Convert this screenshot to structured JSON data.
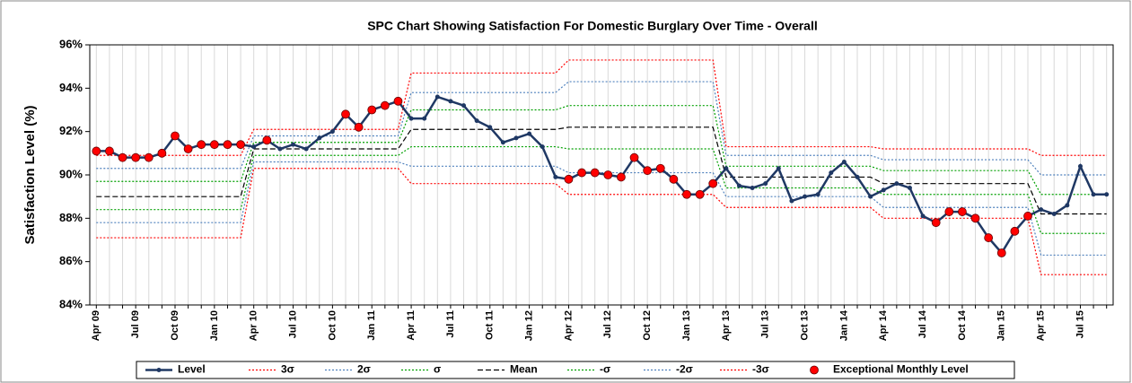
{
  "chart_data": {
    "type": "line",
    "title": "SPC Chart Showing Satisfaction For Domestic Burglary Over Time - Overall",
    "ylabel": "Satisfaction  Level  (%)",
    "categories": [
      "Apr 09",
      null,
      null,
      "Jul 09",
      null,
      null,
      "Oct 09",
      null,
      null,
      "Jan 10",
      null,
      null,
      "Apr 10",
      null,
      null,
      "Jul 10",
      null,
      null,
      "Oct 10",
      null,
      null,
      "Jan 11",
      null,
      null,
      "Apr 11",
      null,
      null,
      "Jul 11",
      null,
      null,
      "Oct 11",
      null,
      null,
      "Jan 12",
      null,
      null,
      "Apr 12",
      null,
      null,
      "Jul 12",
      null,
      null,
      "Oct 12",
      null,
      null,
      "Jan 13",
      null,
      null,
      "Apr 13",
      null,
      null,
      "Jul 13",
      null,
      null,
      "Oct 13",
      null,
      null,
      "Jan 14",
      null,
      null,
      "Apr 14",
      null,
      null,
      "Jul 14",
      null,
      null,
      "Oct 14",
      null,
      null,
      "Jan 15",
      null,
      null,
      "Apr 15",
      null,
      null,
      "Jul 15",
      null,
      null
    ],
    "ylim": [
      84,
      96
    ],
    "yticks": [
      {
        "value": 84,
        "label": "84%"
      },
      {
        "value": 86,
        "label": "86%"
      },
      {
        "value": 88,
        "label": "88%"
      },
      {
        "value": 90,
        "label": "90%"
      },
      {
        "value": 92,
        "label": "92%"
      },
      {
        "value": 94,
        "label": "94%"
      },
      {
        "value": 96,
        "label": "96%"
      }
    ],
    "grid": true,
    "legend": "bottom",
    "series": [
      {
        "name": "Level",
        "color": "#1f3864",
        "dash": "solid",
        "marker": "dot",
        "values": [
          91.1,
          91.1,
          90.8,
          90.8,
          90.8,
          91.0,
          91.8,
          91.2,
          91.4,
          91.4,
          91.4,
          91.4,
          91.3,
          91.6,
          91.2,
          91.4,
          91.2,
          91.7,
          92.0,
          92.8,
          92.2,
          93.0,
          93.2,
          93.4,
          92.6,
          92.6,
          93.6,
          93.4,
          93.2,
          92.5,
          92.2,
          91.5,
          91.7,
          91.9,
          91.3,
          89.9,
          89.8,
          90.1,
          90.1,
          90.0,
          89.9,
          90.8,
          90.2,
          90.3,
          89.8,
          89.1,
          89.1,
          89.6,
          90.3,
          89.5,
          89.4,
          89.6,
          90.3,
          88.8,
          89.0,
          89.1,
          90.1,
          90.6,
          89.9,
          89.0,
          89.3,
          89.6,
          89.4,
          88.1,
          87.8,
          88.3,
          88.3,
          88.0,
          87.1,
          86.4,
          87.4,
          88.1,
          88.4,
          88.2,
          88.6,
          90.4,
          89.1,
          89.1
        ]
      },
      {
        "name": "3σ",
        "color": "#ff0000",
        "dash": "dotted",
        "values": [
          90.9,
          90.9,
          90.9,
          90.9,
          90.9,
          90.9,
          90.9,
          90.9,
          90.9,
          90.9,
          90.9,
          90.9,
          92.1,
          92.1,
          92.1,
          92.1,
          92.1,
          92.1,
          92.1,
          92.1,
          92.1,
          92.1,
          92.1,
          92.1,
          94.7,
          94.7,
          94.7,
          94.7,
          94.7,
          94.7,
          94.7,
          94.7,
          94.7,
          94.7,
          94.7,
          94.7,
          95.3,
          95.3,
          95.3,
          95.3,
          95.3,
          95.3,
          95.3,
          95.3,
          95.3,
          95.3,
          95.3,
          95.3,
          91.3,
          91.3,
          91.3,
          91.3,
          91.3,
          91.3,
          91.3,
          91.3,
          91.3,
          91.3,
          91.3,
          91.3,
          91.2,
          91.2,
          91.2,
          91.2,
          91.2,
          91.2,
          91.2,
          91.2,
          91.2,
          91.2,
          91.2,
          91.2,
          90.9,
          90.9,
          90.9,
          90.9,
          90.9,
          90.9
        ]
      },
      {
        "name": "2σ",
        "color": "#4f81bd",
        "dash": "dotted",
        "values": [
          90.3,
          90.3,
          90.3,
          90.3,
          90.3,
          90.3,
          90.3,
          90.3,
          90.3,
          90.3,
          90.3,
          90.3,
          91.8,
          91.8,
          91.8,
          91.8,
          91.8,
          91.8,
          91.8,
          91.8,
          91.8,
          91.8,
          91.8,
          91.8,
          93.8,
          93.8,
          93.8,
          93.8,
          93.8,
          93.8,
          93.8,
          93.8,
          93.8,
          93.8,
          93.8,
          93.8,
          94.3,
          94.3,
          94.3,
          94.3,
          94.3,
          94.3,
          94.3,
          94.3,
          94.3,
          94.3,
          94.3,
          94.3,
          90.9,
          90.9,
          90.9,
          90.9,
          90.9,
          90.9,
          90.9,
          90.9,
          90.9,
          90.9,
          90.9,
          90.9,
          90.7,
          90.7,
          90.7,
          90.7,
          90.7,
          90.7,
          90.7,
          90.7,
          90.7,
          90.7,
          90.7,
          90.7,
          90.0,
          90.0,
          90.0,
          90.0,
          90.0,
          90.0
        ]
      },
      {
        "name": "σ",
        "color": "#00a000",
        "dash": "dotted",
        "values": [
          89.7,
          89.7,
          89.7,
          89.7,
          89.7,
          89.7,
          89.7,
          89.7,
          89.7,
          89.7,
          89.7,
          89.7,
          91.5,
          91.5,
          91.5,
          91.5,
          91.5,
          91.5,
          91.5,
          91.5,
          91.5,
          91.5,
          91.5,
          91.5,
          93.0,
          93.0,
          93.0,
          93.0,
          93.0,
          93.0,
          93.0,
          93.0,
          93.0,
          93.0,
          93.0,
          93.0,
          93.2,
          93.2,
          93.2,
          93.2,
          93.2,
          93.2,
          93.2,
          93.2,
          93.2,
          93.2,
          93.2,
          93.2,
          90.4,
          90.4,
          90.4,
          90.4,
          90.4,
          90.4,
          90.4,
          90.4,
          90.4,
          90.4,
          90.4,
          90.4,
          90.2,
          90.2,
          90.2,
          90.2,
          90.2,
          90.2,
          90.2,
          90.2,
          90.2,
          90.2,
          90.2,
          90.2,
          89.1,
          89.1,
          89.1,
          89.1,
          89.1,
          89.1
        ]
      },
      {
        "name": "Mean",
        "color": "#000000",
        "dash": "dashed",
        "values": [
          89.0,
          89.0,
          89.0,
          89.0,
          89.0,
          89.0,
          89.0,
          89.0,
          89.0,
          89.0,
          89.0,
          89.0,
          91.2,
          91.2,
          91.2,
          91.2,
          91.2,
          91.2,
          91.2,
          91.2,
          91.2,
          91.2,
          91.2,
          91.2,
          92.1,
          92.1,
          92.1,
          92.1,
          92.1,
          92.1,
          92.1,
          92.1,
          92.1,
          92.1,
          92.1,
          92.1,
          92.2,
          92.2,
          92.2,
          92.2,
          92.2,
          92.2,
          92.2,
          92.2,
          92.2,
          92.2,
          92.2,
          92.2,
          89.9,
          89.9,
          89.9,
          89.9,
          89.9,
          89.9,
          89.9,
          89.9,
          89.9,
          89.9,
          89.9,
          89.9,
          89.6,
          89.6,
          89.6,
          89.6,
          89.6,
          89.6,
          89.6,
          89.6,
          89.6,
          89.6,
          89.6,
          89.6,
          88.2,
          88.2,
          88.2,
          88.2,
          88.2,
          88.2
        ]
      },
      {
        "name": "-σ",
        "color": "#00a000",
        "dash": "dotted",
        "values": [
          88.4,
          88.4,
          88.4,
          88.4,
          88.4,
          88.4,
          88.4,
          88.4,
          88.4,
          88.4,
          88.4,
          88.4,
          90.9,
          90.9,
          90.9,
          90.9,
          90.9,
          90.9,
          90.9,
          90.9,
          90.9,
          90.9,
          90.9,
          90.9,
          91.3,
          91.3,
          91.3,
          91.3,
          91.3,
          91.3,
          91.3,
          91.3,
          91.3,
          91.3,
          91.3,
          91.3,
          91.2,
          91.2,
          91.2,
          91.2,
          91.2,
          91.2,
          91.2,
          91.2,
          91.2,
          91.2,
          91.2,
          91.2,
          89.4,
          89.4,
          89.4,
          89.4,
          89.4,
          89.4,
          89.4,
          89.4,
          89.4,
          89.4,
          89.4,
          89.4,
          89.1,
          89.1,
          89.1,
          89.1,
          89.1,
          89.1,
          89.1,
          89.1,
          89.1,
          89.1,
          89.1,
          89.1,
          87.3,
          87.3,
          87.3,
          87.3,
          87.3,
          87.3
        ]
      },
      {
        "name": "-2σ",
        "color": "#4f81bd",
        "dash": "dotted",
        "values": [
          87.8,
          87.8,
          87.8,
          87.8,
          87.8,
          87.8,
          87.8,
          87.8,
          87.8,
          87.8,
          87.8,
          87.8,
          90.6,
          90.6,
          90.6,
          90.6,
          90.6,
          90.6,
          90.6,
          90.6,
          90.6,
          90.6,
          90.6,
          90.6,
          90.4,
          90.4,
          90.4,
          90.4,
          90.4,
          90.4,
          90.4,
          90.4,
          90.4,
          90.4,
          90.4,
          90.4,
          90.1,
          90.1,
          90.1,
          90.1,
          90.1,
          90.1,
          90.1,
          90.1,
          90.1,
          90.1,
          90.1,
          90.1,
          89.0,
          89.0,
          89.0,
          89.0,
          89.0,
          89.0,
          89.0,
          89.0,
          89.0,
          89.0,
          89.0,
          89.0,
          88.5,
          88.5,
          88.5,
          88.5,
          88.5,
          88.5,
          88.5,
          88.5,
          88.5,
          88.5,
          88.5,
          88.5,
          86.3,
          86.3,
          86.3,
          86.3,
          86.3,
          86.3
        ]
      },
      {
        "name": "-3σ",
        "color": "#ff0000",
        "dash": "dotted",
        "values": [
          87.1,
          87.1,
          87.1,
          87.1,
          87.1,
          87.1,
          87.1,
          87.1,
          87.1,
          87.1,
          87.1,
          87.1,
          90.3,
          90.3,
          90.3,
          90.3,
          90.3,
          90.3,
          90.3,
          90.3,
          90.3,
          90.3,
          90.3,
          90.3,
          89.6,
          89.6,
          89.6,
          89.6,
          89.6,
          89.6,
          89.6,
          89.6,
          89.6,
          89.6,
          89.6,
          89.6,
          89.1,
          89.1,
          89.1,
          89.1,
          89.1,
          89.1,
          89.1,
          89.1,
          89.1,
          89.1,
          89.1,
          89.1,
          88.5,
          88.5,
          88.5,
          88.5,
          88.5,
          88.5,
          88.5,
          88.5,
          88.5,
          88.5,
          88.5,
          88.5,
          88.0,
          88.0,
          88.0,
          88.0,
          88.0,
          88.0,
          88.0,
          88.0,
          88.0,
          88.0,
          88.0,
          88.0,
          85.4,
          85.4,
          85.4,
          85.4,
          85.4,
          85.4
        ]
      },
      {
        "name": "Exceptional Monthly Level",
        "color": "#ff0000",
        "dash": "none",
        "marker": "circle",
        "values": [
          91.1,
          91.1,
          90.8,
          90.8,
          90.8,
          91.0,
          91.8,
          91.2,
          91.4,
          91.4,
          91.4,
          91.4,
          null,
          91.6,
          null,
          null,
          null,
          null,
          null,
          92.8,
          92.2,
          93.0,
          93.2,
          93.4,
          null,
          null,
          null,
          null,
          null,
          null,
          null,
          null,
          null,
          null,
          null,
          null,
          89.8,
          90.1,
          90.1,
          90.0,
          89.9,
          90.8,
          90.2,
          90.3,
          89.8,
          89.1,
          89.1,
          89.6,
          null,
          null,
          null,
          null,
          null,
          null,
          null,
          null,
          null,
          null,
          null,
          null,
          null,
          null,
          null,
          null,
          87.8,
          88.3,
          88.3,
          88.0,
          87.1,
          86.4,
          87.4,
          88.1,
          null,
          null,
          null,
          null,
          null,
          null
        ]
      }
    ]
  }
}
